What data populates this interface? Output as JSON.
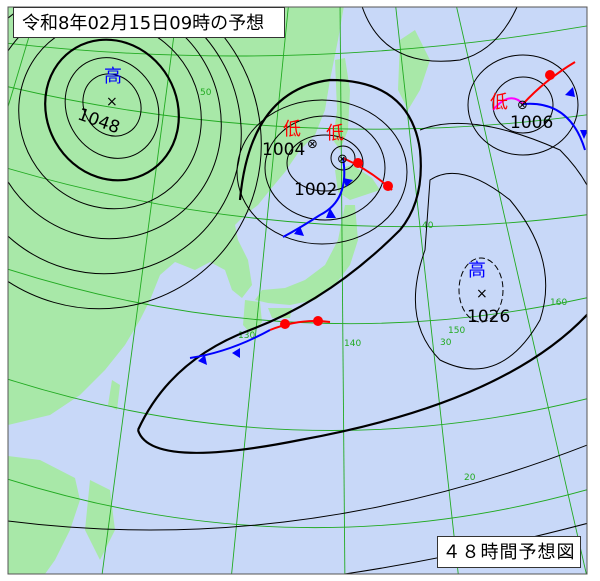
{
  "title": "令和8年02月15日09時の予想",
  "chart_label": "４８時間予想図",
  "colors": {
    "land": "#a8e8a8",
    "sea": "#c8d8f8",
    "isobar": "#000000",
    "grid": "#22aa22",
    "high": "#0000ff",
    "low": "#ff0000",
    "cold_front": "#0000ff",
    "warm_front": "#ff0000",
    "occluded_front": "#ff00ff"
  },
  "pressure_systems": [
    {
      "type": "high",
      "symbol": "高",
      "pressure": "1048"
    },
    {
      "type": "low",
      "symbol": "低",
      "pressure": "1004"
    },
    {
      "type": "low",
      "symbol": "低",
      "pressure": "1002"
    },
    {
      "type": "high",
      "symbol": "高",
      "pressure": "1026"
    },
    {
      "type": "low",
      "symbol": "低",
      "pressure": "1006"
    }
  ],
  "grid_labels": {
    "lat": [
      "50",
      "40",
      "30",
      "20"
    ],
    "lon": [
      "130",
      "140",
      "150",
      "160"
    ]
  }
}
